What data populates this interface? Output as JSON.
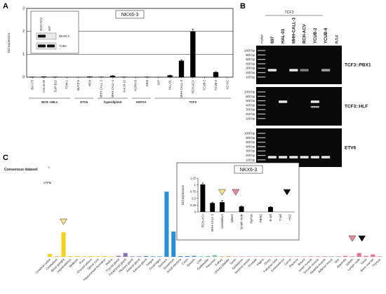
{
  "panels": {
    "A": {
      "letter": "A",
      "title": "NKX6-3",
      "ylabel": "fold expression",
      "yticks": [
        "0",
        "1",
        "2",
        "3"
      ],
      "inset": {
        "lanes": [
          "RCH-ACV",
          "697"
        ],
        "bands": [
          "NKX6-3",
          "TUBA"
        ]
      },
      "groups": [
        {
          "label": "BCR::ABL1",
          "from": 0,
          "to": 3
        },
        {
          "label": "ETV6",
          "from": 4,
          "to": 5
        },
        {
          "label": "hyperdiploid",
          "from": 6,
          "to": 8
        },
        {
          "label": "KMT2A",
          "from": 9,
          "to": 10
        },
        {
          "label": "TCF3",
          "from": 11,
          "to": 17
        }
      ]
    },
    "B": {
      "letter": "B",
      "header": "TCF3",
      "marker_label": "marker",
      "lanes": [
        "697",
        "HAL-01",
        "MHH-CALL-3",
        "RCH-ACV",
        "YCUB-2",
        "YCUB-6",
        "n.t.c"
      ],
      "ladder": [
        "1000 bp",
        "800 bp",
        "600 bp",
        "400 bp",
        "300 bp",
        "200 bp",
        "100 bp"
      ],
      "gels": [
        "TCF3::PBX1",
        "TCF3::HLF",
        "ETV6"
      ]
    },
    "C": {
      "letter": "C",
      "title": "Consensus dataset",
      "title_sup": "c",
      "ylabel": "nTPM",
      "inset": {
        "title": "NKX6-3",
        "ylabel": "fold expression",
        "yticks": [
          "0",
          "0.25",
          "0.5",
          "0.75",
          "1",
          "1.25"
        ]
      }
    }
  },
  "chart_data": [
    {
      "type": "bar",
      "panel": "A",
      "categories": [
        "BV-173",
        "NALM-20",
        "SUP-B15",
        "TOM-1",
        "MUTZ-5",
        "REH",
        "MHH-CALL-2",
        "MHH-CALL-4",
        "NALM-16",
        "KOPN-8",
        "SEM",
        "697",
        "HAL-01",
        "MHH-CALL-3",
        "RCH-ACV",
        "YCUB-2",
        "YCUB-6",
        "NC-NC"
      ],
      "values": [
        0.02,
        0.03,
        0.02,
        0.01,
        0.01,
        0.03,
        0.02,
        0.06,
        0.02,
        0.01,
        0.02,
        0.01,
        0.08,
        0.72,
        2.0,
        0.01,
        0.22,
        0.0
      ],
      "errors": [
        0,
        0,
        0,
        0,
        0,
        0,
        0,
        0.01,
        0,
        0,
        0,
        0,
        0.01,
        0.04,
        0.1,
        0,
        0.02,
        0
      ],
      "title": "NKX6-3",
      "ylabel": "fold expression",
      "ylim": [
        0,
        3
      ]
    },
    {
      "type": "bar",
      "panel": "C",
      "title": "Consensus dataset",
      "ylabel": "nTPM",
      "categories": [
        "Cerebral cortex",
        "Cerebellum",
        "Basal ganglia",
        "Hypothalamus",
        "Midbrain",
        "Pons",
        "Choroid plexus",
        "Spinal cord",
        "Hippocampal formation",
        "Retina",
        "Thyroid gland",
        "Parathyroid gland",
        "Pituitary gland",
        "Adrenal gland",
        "Salivary gland",
        "Tongue",
        "Esophagus",
        "Stomach",
        "Duodenum",
        "Small intestine",
        "Colon",
        "Rectum",
        "Liver",
        "Gallbladder",
        "Pancreas",
        "Kidney",
        "Urinary bladder",
        "Testis",
        "Epididymis",
        "Seminal vesicle",
        "Prostate",
        "Vagina",
        "Ovary",
        "Fallopian tube",
        "Endometrium",
        "Cervix",
        "Placenta",
        "Breast",
        "Heart muscle",
        "Smooth muscle",
        "Skeletal muscle",
        "Adipose tissue",
        "Skin",
        "Appendix",
        "Spleen",
        "Lymph node",
        "Tonsil",
        "Bone marrow",
        "Thymus"
      ],
      "values": [
        1.2,
        0.3,
        10.3,
        0.3,
        0.3,
        0.2,
        0.3,
        0.2,
        0.3,
        0.2,
        0.4,
        1.6,
        0.2,
        0.2,
        0.3,
        0.2,
        0.2,
        27.3,
        10.6,
        0.3,
        0.3,
        0.4,
        0.2,
        0.3,
        0.7,
        0.2,
        0.3,
        0.2,
        0.2,
        0.2,
        0.2,
        0.2,
        0.2,
        0.2,
        0.2,
        0.2,
        0.2,
        0.2,
        0.2,
        0.2,
        0.2,
        0.2,
        0.2,
        0.4,
        0.2,
        1.6,
        0.4,
        1.0,
        0.2
      ],
      "colors": [
        "#f2d21a",
        "#f2d21a",
        "#f2d21a",
        "#f2d21a",
        "#f2d21a",
        "#f2d21a",
        "#f2d21a",
        "#f2d21a",
        "#f2d21a",
        "#f2d21a",
        "#8a6fb3",
        "#8a6fb3",
        "#8a6fb3",
        "#8a6fb3",
        "#3c8fd1",
        "#3c8fd1",
        "#3c8fd1",
        "#2a8fd8",
        "#2a8fd8",
        "#2a8fd8",
        "#2a8fd8",
        "#2a8fd8",
        "#6fc4b0",
        "#6fc4b0",
        "#6fc4b0",
        "#f0a050",
        "#f0a050",
        "#e8a0c0",
        "#e8a0c0",
        "#e8a0c0",
        "#e8a0c0",
        "#e8a0c0",
        "#e8a0c0",
        "#e8a0c0",
        "#e8a0c0",
        "#e8a0c0",
        "#e8a0c0",
        "#e8a0c0",
        "#d08080",
        "#d08080",
        "#d08080",
        "#a0a0a0",
        "#a0a0a0",
        "#e87090",
        "#e87090",
        "#e87090",
        "#e87090",
        "#e87090",
        "#e87090"
      ]
    },
    {
      "type": "bar",
      "panel": "C-inset",
      "title": "NKX6-3",
      "ylabel": "fold expression",
      "categories": [
        "RCH-ACV",
        "MHH-CALL-3",
        "cerebellum",
        "spleen",
        "lymph node",
        "thymus",
        "PBMC",
        "B-cell",
        "T-cell",
        "HSC"
      ],
      "values": [
        1.02,
        0.33,
        0.36,
        0.0,
        0.2,
        0.0,
        0.0,
        0.18,
        0.0,
        0.0
      ],
      "errors": [
        0.05,
        0.03,
        0.06,
        0,
        0.02,
        0,
        0,
        0.02,
        0,
        0
      ],
      "ylim": [
        0,
        1.25
      ]
    }
  ]
}
